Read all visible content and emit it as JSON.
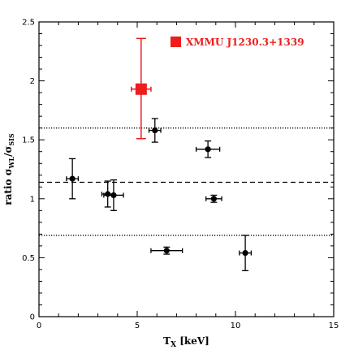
{
  "chart_data": {
    "type": "scatter",
    "title": "",
    "xlabel": "T",
    "xlabel_sub": "X",
    "xlabel_unit": " [keV]",
    "ylabel_prefix": "ratio σ",
    "ylabel_sub1": "WL",
    "ylabel_mid": "/σ",
    "ylabel_sub2": "SIS",
    "xlim": [
      0,
      15
    ],
    "ylim": [
      0,
      2.5
    ],
    "xticks": [
      0,
      5,
      10,
      15
    ],
    "yticks": [
      0,
      0.5,
      1,
      1.5,
      2,
      2.5
    ],
    "grid": false,
    "legend_position": "top-right",
    "highlight_color": "#ee1c1c",
    "point_color": "#000000",
    "reference_lines": [
      {
        "y": 1.6,
        "style": "dotted"
      },
      {
        "y": 1.14,
        "style": "dashed"
      },
      {
        "y": 0.69,
        "style": "dotted"
      }
    ],
    "series": [
      {
        "name": "",
        "marker": "circle",
        "points": [
          {
            "x": 1.7,
            "y": 1.17,
            "xerr": 0.3,
            "yerr": 0.17
          },
          {
            "x": 3.5,
            "y": 1.04,
            "xerr": 0.3,
            "yerr": 0.11
          },
          {
            "x": 3.8,
            "y": 1.03,
            "xerr": 0.5,
            "yerr": 0.13
          },
          {
            "x": 5.9,
            "y": 1.58,
            "xerr": 0.3,
            "yerr": 0.1
          },
          {
            "x": 6.5,
            "y": 0.56,
            "xerr": 0.8,
            "yerr": 0.03
          },
          {
            "x": 8.6,
            "y": 1.42,
            "xerr": 0.6,
            "yerr": 0.07
          },
          {
            "x": 8.9,
            "y": 1.0,
            "xerr": 0.4,
            "yerr": 0.03
          },
          {
            "x": 10.5,
            "y": 0.54,
            "xerr": 0.3,
            "yerr": 0.15
          }
        ]
      },
      {
        "name": "XMMU J1230.3+1339",
        "marker": "square",
        "color": "#ee1c1c",
        "points": [
          {
            "x": 5.2,
            "y": 1.93,
            "xerr": 0.5,
            "yerr_plus": 0.43,
            "yerr_minus": 0.42
          }
        ]
      }
    ]
  }
}
